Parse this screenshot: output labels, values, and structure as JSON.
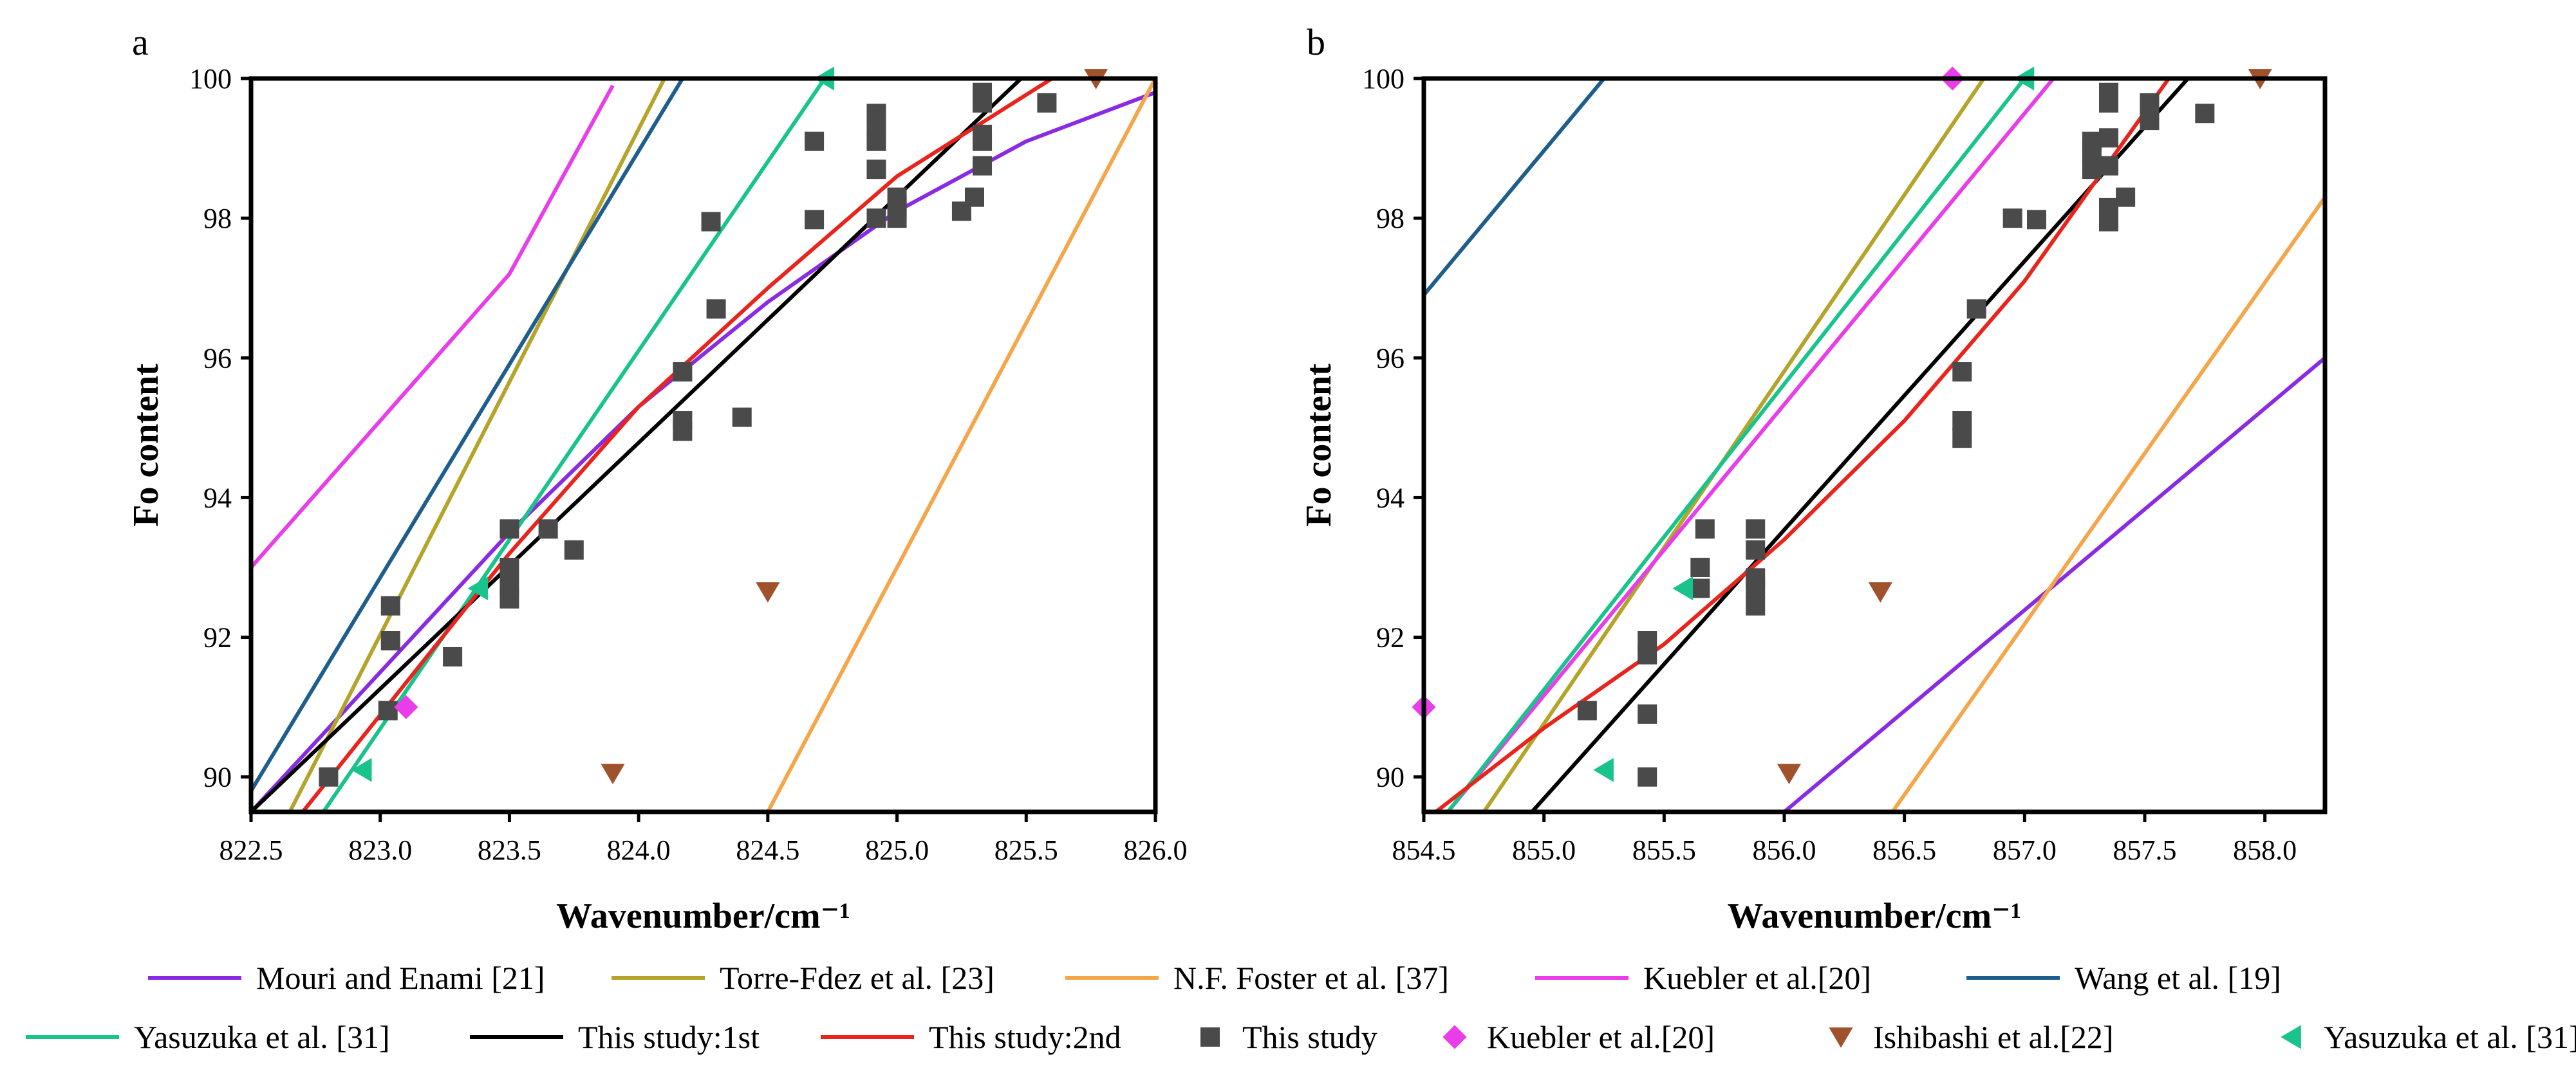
{
  "chart_data": [
    {
      "panel": "a",
      "type": "scatter",
      "xlabel": "Wavenumber/cm⁻¹",
      "ylabel": "Fo content",
      "xlim": [
        822.5,
        826.0
      ],
      "ylim": [
        89.5,
        100.0
      ],
      "xticks": [
        822.5,
        823.0,
        823.5,
        824.0,
        824.5,
        825.0,
        825.5,
        826.0
      ],
      "xtick_labels": [
        "822.5",
        "823.0",
        "823.5",
        "824.0",
        "824.5",
        "825.0",
        "825.5",
        "826.0"
      ],
      "yticks": [
        90,
        92,
        94,
        96,
        98,
        100
      ],
      "ytick_labels": [
        "90",
        "92",
        "94",
        "96",
        "98",
        "100"
      ],
      "series": [
        {
          "name": "Mouri and Enami [21]",
          "type": "line",
          "color": "#8a2be2",
          "points": [
            [
              822.5,
              89.5
            ],
            [
              823.0,
              91.5
            ],
            [
              823.5,
              93.5
            ],
            [
              824.0,
              95.3
            ],
            [
              824.5,
              96.8
            ],
            [
              825.0,
              98.1
            ],
            [
              825.5,
              99.1
            ],
            [
              826.0,
              99.8
            ]
          ]
        },
        {
          "name": "Torre-Fdez et al. [23]",
          "type": "line",
          "color": "#b5a42a",
          "points": [
            [
              822.65,
              89.5
            ],
            [
              824.1,
              100.0
            ]
          ]
        },
        {
          "name": "N.F. Foster et al. [37]",
          "type": "line",
          "color": "#f5a64a",
          "points": [
            [
              824.5,
              89.5
            ],
            [
              826.0,
              100.0
            ]
          ]
        },
        {
          "name": "Kuebler et al.[20]",
          "type": "line",
          "color": "#e83de8",
          "points": [
            [
              822.5,
              93.0
            ],
            [
              823.0,
              95.1
            ],
            [
              823.5,
              97.2
            ],
            [
              823.9,
              99.9
            ]
          ]
        },
        {
          "name": "Wang et al. [19]",
          "type": "line",
          "color": "#1f5e8c",
          "points": [
            [
              822.5,
              89.8
            ],
            [
              824.17,
              100.0
            ]
          ]
        },
        {
          "name": "Yasuzuka et al. [31]",
          "type": "line",
          "color": "#19c48c",
          "points": [
            [
              822.78,
              89.5
            ],
            [
              824.72,
              100.0
            ]
          ]
        },
        {
          "name": "This study:1st",
          "type": "line",
          "color": "#000000",
          "points": [
            [
              822.5,
              89.5
            ],
            [
              825.48,
              100.0
            ]
          ]
        },
        {
          "name": "This study:2nd",
          "type": "line",
          "color": "#e8241c",
          "points": [
            [
              822.7,
              89.5
            ],
            [
              823.5,
              93.2
            ],
            [
              824.0,
              95.3
            ],
            [
              824.5,
              97.0
            ],
            [
              825.0,
              98.6
            ],
            [
              825.6,
              100.0
            ]
          ]
        },
        {
          "name": "This study",
          "type": "scatter",
          "marker": "square",
          "color": "#4a4a4a",
          "points": [
            [
              822.8,
              90.0
            ],
            [
              823.03,
              90.95
            ],
            [
              823.04,
              91.95
            ],
            [
              823.04,
              92.45
            ],
            [
              823.28,
              91.72
            ],
            [
              823.5,
              92.55
            ],
            [
              823.5,
              92.75
            ],
            [
              823.5,
              93.0
            ],
            [
              823.5,
              93.55
            ],
            [
              823.65,
              93.55
            ],
            [
              823.75,
              93.25
            ],
            [
              824.17,
              94.95
            ],
            [
              824.17,
              95.1
            ],
            [
              824.17,
              95.8
            ],
            [
              824.4,
              95.15
            ],
            [
              824.3,
              96.7
            ],
            [
              824.28,
              97.95
            ],
            [
              824.68,
              97.98
            ],
            [
              824.68,
              99.1
            ],
            [
              824.92,
              98.0
            ],
            [
              824.92,
              98.7
            ],
            [
              824.92,
              99.1
            ],
            [
              824.92,
              99.3
            ],
            [
              824.92,
              99.5
            ],
            [
              825.0,
              98.0
            ],
            [
              825.0,
              98.15
            ],
            [
              825.0,
              98.3
            ],
            [
              825.25,
              98.1
            ],
            [
              825.3,
              98.3
            ],
            [
              825.33,
              98.75
            ],
            [
              825.33,
              99.1
            ],
            [
              825.33,
              99.2
            ],
            [
              825.33,
              99.65
            ],
            [
              825.33,
              99.8
            ],
            [
              825.58,
              99.65
            ]
          ]
        },
        {
          "name": "Kuebler et al.[20]",
          "type": "scatter",
          "marker": "diamond",
          "color": "#e83de8",
          "points": [
            [
              823.1,
              91.0
            ]
          ]
        },
        {
          "name": "Ishibashi et al.[22]",
          "type": "scatter",
          "marker": "triangle-down",
          "color": "#a0522d",
          "points": [
            [
              823.9,
              90.05
            ],
            [
              824.5,
              92.65
            ],
            [
              825.77,
              100.0
            ]
          ]
        },
        {
          "name": "Yasuzuka et al. [31]",
          "type": "scatter",
          "marker": "triangle-left",
          "color": "#19c48c",
          "points": [
            [
              822.93,
              90.1
            ],
            [
              823.38,
              92.7
            ],
            [
              824.72,
              100.0
            ]
          ]
        }
      ]
    },
    {
      "panel": "b",
      "type": "scatter",
      "xlabel": "Wavenumber/cm⁻¹",
      "ylabel": "Fo content",
      "xlim": [
        854.5,
        858.25
      ],
      "ylim": [
        89.5,
        100.0
      ],
      "xticks": [
        854.5,
        855.0,
        855.5,
        856.0,
        856.5,
        857.0,
        857.5,
        858.0
      ],
      "xtick_labels": [
        "854.5",
        "855.0",
        "855.5",
        "856.0",
        "856.5",
        "857.0",
        "857.5",
        "858.0"
      ],
      "yticks": [
        90,
        92,
        94,
        96,
        98,
        100
      ],
      "ytick_labels": [
        "90",
        "92",
        "94",
        "96",
        "98",
        "100"
      ],
      "series": [
        {
          "name": "Mouri and Enami [21]",
          "type": "line",
          "color": "#8a2be2",
          "points": [
            [
              856.0,
              89.5
            ],
            [
              858.25,
              96.0
            ]
          ]
        },
        {
          "name": "Torre-Fdez et al. [23]",
          "type": "line",
          "color": "#b5a42a",
          "points": [
            [
              854.75,
              89.5
            ],
            [
              856.83,
              100.0
            ]
          ]
        },
        {
          "name": "N.F. Foster et al. [37]",
          "type": "line",
          "color": "#f5a64a",
          "points": [
            [
              856.45,
              89.5
            ],
            [
              858.25,
              98.3
            ]
          ]
        },
        {
          "name": "Kuebler et al.[20]",
          "type": "line",
          "color": "#e83de8",
          "points": [
            [
              854.6,
              89.5
            ],
            [
              857.12,
              100.0
            ]
          ]
        },
        {
          "name": "Wang et al. [19]",
          "type": "line",
          "color": "#1f5e8c",
          "points": [
            [
              854.5,
              96.9
            ],
            [
              855.25,
              100.0
            ]
          ]
        },
        {
          "name": "Yasuzuka et al. [31]",
          "type": "line",
          "color": "#19c48c",
          "points": [
            [
              854.6,
              89.5
            ],
            [
              857.0,
              100.0
            ]
          ]
        },
        {
          "name": "This study:1st",
          "type": "line",
          "color": "#000000",
          "points": [
            [
              854.95,
              89.5
            ],
            [
              857.68,
              100.0
            ]
          ]
        },
        {
          "name": "This study:2nd",
          "type": "line",
          "color": "#e8241c",
          "points": [
            [
              854.55,
              89.5
            ],
            [
              855.0,
              90.7
            ],
            [
              855.5,
              91.9
            ],
            [
              856.0,
              93.4
            ],
            [
              856.5,
              95.1
            ],
            [
              857.0,
              97.1
            ],
            [
              857.6,
              100.0
            ]
          ]
        },
        {
          "name": "This study",
          "type": "scatter",
          "marker": "square",
          "color": "#4a4a4a",
          "points": [
            [
              855.18,
              90.95
            ],
            [
              855.43,
              90.0
            ],
            [
              855.43,
              90.9
            ],
            [
              855.43,
              91.75
            ],
            [
              855.43,
              91.95
            ],
            [
              855.65,
              92.7
            ],
            [
              855.65,
              93.0
            ],
            [
              855.67,
              93.55
            ],
            [
              855.88,
              92.45
            ],
            [
              855.88,
              92.7
            ],
            [
              855.88,
              92.85
            ],
            [
              855.88,
              93.25
            ],
            [
              855.88,
              93.55
            ],
            [
              856.74,
              94.85
            ],
            [
              856.74,
              95.1
            ],
            [
              856.74,
              95.8
            ],
            [
              856.8,
              96.7
            ],
            [
              856.95,
              98.0
            ],
            [
              857.05,
              97.98
            ],
            [
              857.28,
              98.7
            ],
            [
              857.28,
              98.95
            ],
            [
              857.28,
              99.1
            ],
            [
              857.35,
              97.95
            ],
            [
              857.35,
              98.15
            ],
            [
              857.35,
              98.75
            ],
            [
              857.35,
              99.15
            ],
            [
              857.35,
              99.65
            ],
            [
              857.35,
              99.8
            ],
            [
              857.42,
              98.3
            ],
            [
              857.52,
              99.4
            ],
            [
              857.52,
              99.65
            ],
            [
              857.75,
              99.5
            ]
          ]
        },
        {
          "name": "Kuebler et al.[20]",
          "type": "scatter",
          "marker": "diamond",
          "color": "#e83de8",
          "points": [
            [
              854.5,
              91.0
            ],
            [
              856.7,
              100.0
            ]
          ]
        },
        {
          "name": "Ishibashi et al.[22]",
          "type": "scatter",
          "marker": "triangle-down",
          "color": "#a0522d",
          "points": [
            [
              856.02,
              90.05
            ],
            [
              856.4,
              92.65
            ],
            [
              857.98,
              100.0
            ]
          ]
        },
        {
          "name": "Yasuzuka et al. [31]",
          "type": "scatter",
          "marker": "triangle-left",
          "color": "#19c48c",
          "points": [
            [
              855.25,
              90.1
            ],
            [
              855.58,
              92.7
            ],
            [
              857.0,
              100.0
            ]
          ]
        }
      ]
    }
  ],
  "legend": [
    {
      "label": "Mouri and Enami [21]",
      "kind": "line",
      "color": "#8a2be2"
    },
    {
      "label": "Torre-Fdez et al. [23]",
      "kind": "line",
      "color": "#b5a42a"
    },
    {
      "label": "N.F. Foster et al. [37]",
      "kind": "line",
      "color": "#f5a64a"
    },
    {
      "label": "Kuebler et al.[20]",
      "kind": "line",
      "color": "#e83de8"
    },
    {
      "label": "Wang et al. [19]",
      "kind": "line",
      "color": "#1f5e8c"
    },
    {
      "label": "Yasuzuka et al. [31]",
      "kind": "line",
      "color": "#19c48c"
    },
    {
      "label": "This study:1st",
      "kind": "line",
      "color": "#000000"
    },
    {
      "label": "This study:2nd",
      "kind": "line",
      "color": "#e8241c"
    },
    {
      "label": "This study",
      "kind": "square",
      "color": "#4a4a4a"
    },
    {
      "label": "Kuebler et al.[20]",
      "kind": "diamond",
      "color": "#e83de8"
    },
    {
      "label": "Ishibashi et al.[22]",
      "kind": "triangle-down",
      "color": "#a0522d"
    },
    {
      "label": "Yasuzuka et al. [31]",
      "kind": "triangle-left",
      "color": "#19c48c"
    }
  ]
}
